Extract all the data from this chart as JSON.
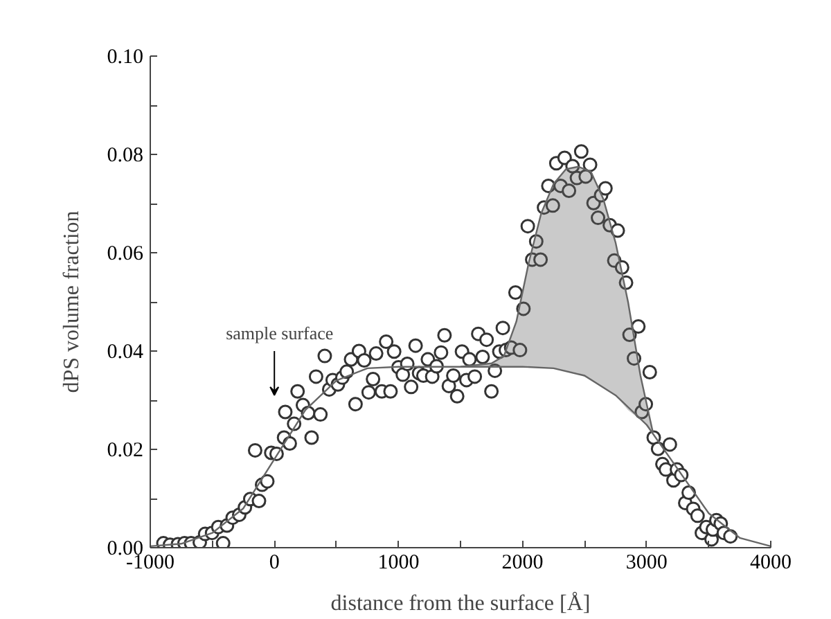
{
  "chart_data": {
    "type": "scatter",
    "xlabel": "distance from the surface [Å]",
    "ylabel": "dPS volume fraction",
    "xlim": [
      -1000,
      4000
    ],
    "ylim": [
      0,
      0.1
    ],
    "xticks": [
      -1000,
      {
        "value": -500,
        "label": null
      },
      0,
      {
        "value": 500,
        "label": null
      },
      1000,
      {
        "value": 1500,
        "label": null
      },
      2000,
      {
        "value": 2500,
        "label": null
      },
      3000,
      {
        "value": 3500,
        "label": null
      },
      4000
    ],
    "yticks": [
      {
        "value": 0,
        "label": "0.00"
      },
      {
        "value": 0.01,
        "label": null
      },
      {
        "value": 0.02,
        "label": "0.02"
      },
      {
        "value": 0.03,
        "label": null
      },
      {
        "value": 0.04,
        "label": "0.04"
      },
      {
        "value": 0.05,
        "label": null
      },
      {
        "value": 0.06,
        "label": "0.06"
      },
      {
        "value": 0.07,
        "label": null
      },
      {
        "value": 0.08,
        "label": "0.08"
      },
      {
        "value": 0.09,
        "label": null
      },
      {
        "value": 0.1,
        "label": "0.10"
      }
    ],
    "grid": false,
    "annotations": [
      "sample surface"
    ],
    "series": [
      {
        "marker": "circle",
        "color": "#333333",
        "x": [
          -894,
          -841,
          -777,
          -724,
          -671,
          -601,
          -558,
          -502,
          -452,
          -413,
          -382,
          -336,
          -283,
          -237,
          -194,
          -155,
          -124,
          -99,
          -57,
          -25,
          18,
          78,
          88,
          124,
          159,
          187,
          230,
          272,
          300,
          336,
          371,
          406,
          442,
          470,
          512,
          548,
          583,
          618,
          654,
          682,
          724,
          760,
          795,
          820,
          866,
          901,
          936,
          965,
          1000,
          1035,
          1071,
          1102,
          1138,
          1166,
          1201,
          1237,
          1272,
          1307,
          1343,
          1371,
          1406,
          1442,
          1473,
          1512,
          1548,
          1572,
          1615,
          1643,
          1678,
          1710,
          1749,
          1777,
          1813,
          1841,
          1866,
          1908,
          1943,
          1979,
          2007,
          2042,
          2078,
          2110,
          2145,
          2173,
          2208,
          2244,
          2272,
          2307,
          2339,
          2374,
          2403,
          2438,
          2473,
          2509,
          2544,
          2572,
          2608,
          2633,
          2668,
          2703,
          2739,
          2767,
          2802,
          2834,
          2862,
          2898,
          2933,
          2961,
          2993,
          3025,
          3057,
          3092,
          3127,
          3155,
          3187,
          3216,
          3244,
          3279,
          3311,
          3339,
          3375,
          3410,
          3445,
          3481,
          3523,
          3534,
          3562,
          3597,
          3622,
          3675
        ],
        "values": [
          0.0009,
          0.0006,
          0.0007,
          0.0009,
          0.0009,
          0.0011,
          0.0028,
          0.003,
          0.0042,
          0.0009,
          0.0045,
          0.0061,
          0.0067,
          0.0082,
          0.0099,
          0.0198,
          0.0095,
          0.0128,
          0.0135,
          0.0193,
          0.0191,
          0.0224,
          0.0276,
          0.0212,
          0.0252,
          0.0318,
          0.029,
          0.0274,
          0.0224,
          0.0348,
          0.0271,
          0.039,
          0.0322,
          0.0341,
          0.0332,
          0.0346,
          0.0358,
          0.0383,
          0.0292,
          0.04,
          0.0381,
          0.0316,
          0.0343,
          0.0395,
          0.0318,
          0.0419,
          0.0318,
          0.0399,
          0.0367,
          0.0352,
          0.0374,
          0.0327,
          0.0411,
          0.0355,
          0.035,
          0.0383,
          0.0348,
          0.0369,
          0.0397,
          0.0432,
          0.0329,
          0.035,
          0.0308,
          0.0399,
          0.0341,
          0.0383,
          0.0348,
          0.0435,
          0.0388,
          0.0423,
          0.0318,
          0.036,
          0.0399,
          0.0447,
          0.0402,
          0.0407,
          0.0519,
          0.0402,
          0.0486,
          0.0654,
          0.0586,
          0.0623,
          0.0586,
          0.0692,
          0.0736,
          0.0696,
          0.0782,
          0.0736,
          0.0793,
          0.0726,
          0.0776,
          0.0752,
          0.0806,
          0.0755,
          0.0779,
          0.0701,
          0.0671,
          0.0717,
          0.0731,
          0.0656,
          0.0584,
          0.0645,
          0.057,
          0.0539,
          0.0433,
          0.0385,
          0.045,
          0.0276,
          0.0292,
          0.0357,
          0.0224,
          0.0201,
          0.017,
          0.0159,
          0.021,
          0.0137,
          0.0159,
          0.0148,
          0.0091,
          0.0112,
          0.0079,
          0.0065,
          0.003,
          0.0042,
          0.0017,
          0.0037,
          0.0056,
          0.0049,
          0.003,
          0.0023
        ]
      },
      {
        "type": "line",
        "marker": "none",
        "color": "#666666",
        "x": [
          -1000,
          -750,
          -500,
          -250,
          0,
          250,
          500,
          750,
          1000,
          1250,
          1500,
          1750,
          2000,
          2250,
          2500,
          2750,
          3000,
          3250,
          3500,
          3750,
          4000
        ],
        "values": [
          0.0003,
          0.0008,
          0.003,
          0.008,
          0.018,
          0.028,
          0.034,
          0.0365,
          0.0368,
          0.0368,
          0.0368,
          0.0368,
          0.0368,
          0.0365,
          0.035,
          0.031,
          0.025,
          0.016,
          0.007,
          0.002,
          0.0003
        ]
      },
      {
        "type": "line",
        "marker": "none",
        "color": "#666666",
        "x": [
          1500,
          1750,
          1850,
          1950,
          2050,
          2150,
          2250,
          2350,
          2450,
          2550,
          2650,
          2750,
          2850,
          2950,
          3050
        ],
        "values": [
          0.0368,
          0.0375,
          0.039,
          0.046,
          0.058,
          0.068,
          0.074,
          0.077,
          0.0775,
          0.0765,
          0.071,
          0.062,
          0.05,
          0.035,
          0.0235
        ],
        "lower": [
          0.0368,
          0.0368,
          0.0368,
          0.0368,
          0.0368,
          0.0367,
          0.0365,
          0.036,
          0.0355,
          0.034,
          0.0325,
          0.031,
          0.028,
          0.026,
          0.0235
        ],
        "upper": [
          0.0368,
          0.0375,
          0.039,
          0.046,
          0.058,
          0.068,
          0.074,
          0.077,
          0.0775,
          0.0765,
          0.071,
          0.062,
          0.05,
          0.035,
          0.0235
        ]
      }
    ]
  }
}
